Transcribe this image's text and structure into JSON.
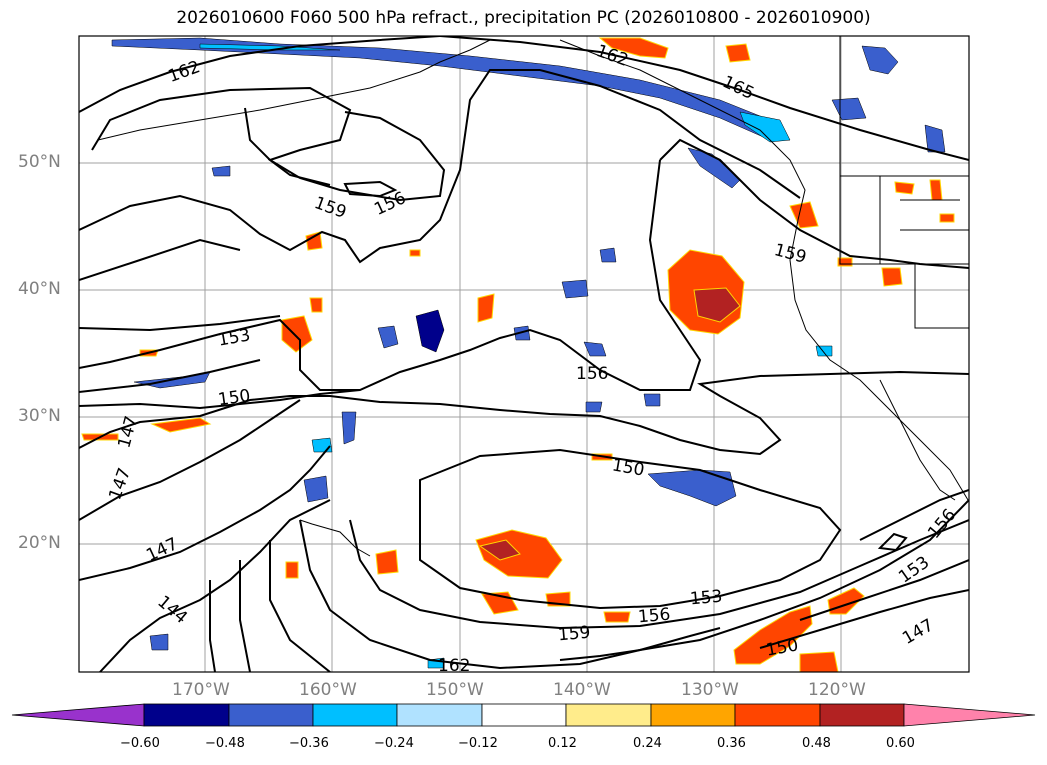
{
  "title": "2026010600 F060 500 hPa refract., precipitation PC (2026010800 - 2026010900)",
  "lat_labels": [
    "50°N",
    "40°N",
    "30°N",
    "20°N"
  ],
  "lon_labels": [
    "170°W",
    "160°W",
    "150°W",
    "140°W",
    "130°W",
    "120°W"
  ],
  "contour_labels": [
    "162",
    "162",
    "165",
    "159",
    "156",
    "159",
    "153",
    "156",
    "150",
    "147",
    "147",
    "150",
    "147",
    "144",
    "156",
    "153",
    "159",
    "156",
    "153",
    "150",
    "147",
    "162"
  ],
  "colorbar": {
    "ticks": [
      "−0.60",
      "−0.48",
      "−0.36",
      "−0.24",
      "−0.12",
      "0.12",
      "0.24",
      "0.36",
      "0.48",
      "0.60"
    ],
    "colors": [
      "#9932cc",
      "#00008b",
      "#3a5fcd",
      "#00bfff",
      "#b0e2ff",
      "#ffffff",
      "#ffec8b",
      "#ffa500",
      "#ff4500",
      "#b22222",
      "#ff82ab"
    ]
  },
  "colors": {
    "contour": "#000000",
    "grid": "#a0a0a0",
    "label": "#808080"
  }
}
